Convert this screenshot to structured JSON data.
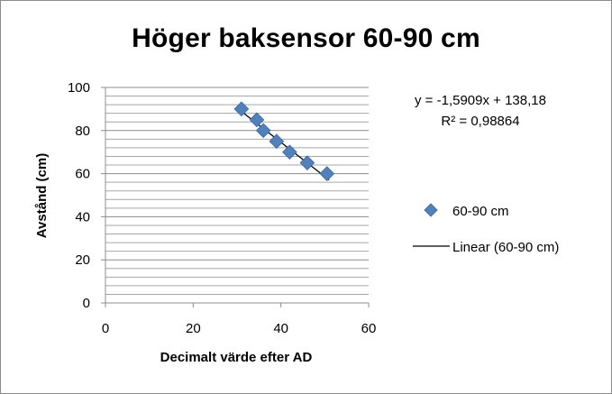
{
  "chart_data": {
    "type": "scatter",
    "title": "Höger baksensor 60-90 cm",
    "xlabel": "Decimalt värde efter AD",
    "ylabel": "Avstånd (cm)",
    "xlim": [
      0,
      60
    ],
    "ylim": [
      0,
      100
    ],
    "x_ticks": [
      "0",
      "20",
      "40",
      "60"
    ],
    "y_ticks": [
      "0",
      "20",
      "40",
      "60",
      "80",
      "100"
    ],
    "grid": "horizontal",
    "legend_position": "right",
    "series": [
      {
        "name": "60-90 cm",
        "marker": "diamond",
        "color": "#4f81bd",
        "points": [
          {
            "x": 31,
            "y": 90
          },
          {
            "x": 34.5,
            "y": 85
          },
          {
            "x": 36,
            "y": 80
          },
          {
            "x": 39,
            "y": 75
          },
          {
            "x": 42,
            "y": 70
          },
          {
            "x": 46,
            "y": 65
          },
          {
            "x": 50.5,
            "y": 60
          }
        ]
      }
    ],
    "trendline": {
      "name": "Linear (60-90 cm)",
      "type": "linear",
      "slope": -1.5909,
      "intercept": 138.18,
      "x_range": [
        30.5,
        51
      ],
      "color": "#000000",
      "equation_text": "y = -1,5909x + 138,18",
      "r2_text": "R² = 0,98864"
    }
  }
}
